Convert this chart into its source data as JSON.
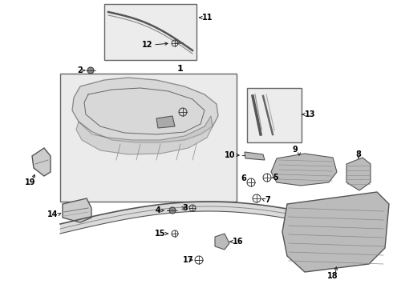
{
  "bg_color": "#ffffff",
  "box_fill": "#e8e8e8",
  "line_color": "#444444",
  "text_color": "#000000",
  "figsize": [
    4.9,
    3.6
  ],
  "dpi": 100
}
